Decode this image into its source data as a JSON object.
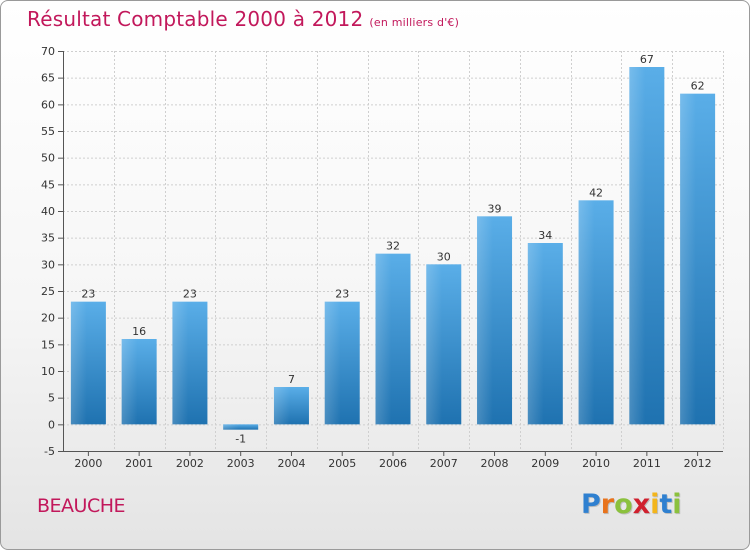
{
  "chart_data": {
    "type": "bar",
    "title": "Résultat Comptable 2000 à 2012",
    "subtitle": "(en milliers d'€)",
    "categories": [
      "2000",
      "2001",
      "2002",
      "2003",
      "2004",
      "2005",
      "2006",
      "2007",
      "2008",
      "2009",
      "2010",
      "2011",
      "2012"
    ],
    "values": [
      23,
      16,
      23,
      -1,
      7,
      23,
      32,
      30,
      39,
      34,
      42,
      67,
      62
    ],
    "ylim": [
      -5,
      70
    ],
    "yticks": [
      -5,
      0,
      5,
      10,
      15,
      20,
      25,
      30,
      35,
      40,
      45,
      50,
      55,
      60,
      65,
      70
    ],
    "grid": true,
    "bar_color_top": "#5aaee8",
    "bar_color_bottom": "#1f72b0"
  },
  "footer": {
    "commune": "BEAUCHE",
    "logo_letters": [
      "P",
      "r",
      "o",
      "x",
      "i",
      "t",
      "i"
    ],
    "logo_colors": [
      "#2f80d0",
      "#e8731c",
      "#8bc13d",
      "#d0202e",
      "#f3b51b",
      "#2f80d0",
      "#8bc13d"
    ]
  }
}
